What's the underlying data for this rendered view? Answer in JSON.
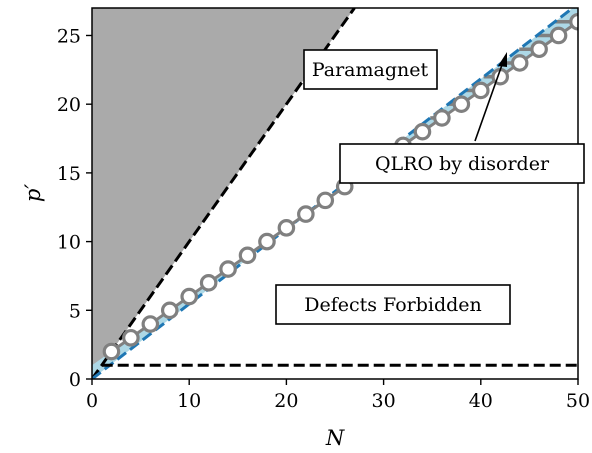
{
  "chart_data": {
    "type": "line",
    "xlabel": "N",
    "ylabel": "p′",
    "xlim": [
      0,
      50
    ],
    "ylim": [
      0,
      27
    ],
    "x_ticks": [
      0,
      10,
      20,
      30,
      40,
      50
    ],
    "y_ticks": [
      0,
      5,
      10,
      15,
      20,
      25
    ],
    "grid": false,
    "regions": [
      {
        "label": "",
        "color": "#aaaaaa",
        "description": "above p = N"
      },
      {
        "label": "Paramagnet",
        "color": "#ffffff"
      },
      {
        "label": "QLRO by disorder",
        "color": "#add8e6"
      },
      {
        "label": "Defects Forbidden",
        "color": "#808080"
      }
    ],
    "lines": [
      {
        "style": "black-dashed",
        "color": "#000000",
        "x": [
          0,
          27
        ],
        "y": [
          0,
          27
        ]
      },
      {
        "style": "blue-dashed",
        "color": "#1f77b4",
        "x": [
          0,
          50
        ],
        "y": [
          0,
          27.3
        ]
      },
      {
        "style": "black-dashed",
        "color": "#000000",
        "x": [
          1,
          50
        ],
        "y": [
          1,
          1
        ]
      }
    ],
    "points": {
      "marker": "open-circle",
      "color": "#808080",
      "x": [
        2,
        4,
        6,
        8,
        10,
        12,
        14,
        16,
        18,
        20,
        22,
        24,
        26,
        28,
        30,
        32,
        34,
        36,
        38,
        40,
        42,
        44,
        46,
        48,
        50
      ],
      "y": [
        2,
        3,
        4,
        5,
        6,
        7,
        8,
        9,
        10,
        11,
        12,
        13,
        14,
        15,
        16,
        17,
        18,
        19,
        20,
        21,
        22,
        23,
        24,
        25,
        26
      ]
    },
    "annotations": [
      {
        "text": "Paramagnet"
      },
      {
        "text": "QLRO by disorder",
        "arrow_to": [
          43.3,
          23.6
        ]
      },
      {
        "text": "Defects Forbidden"
      }
    ]
  }
}
